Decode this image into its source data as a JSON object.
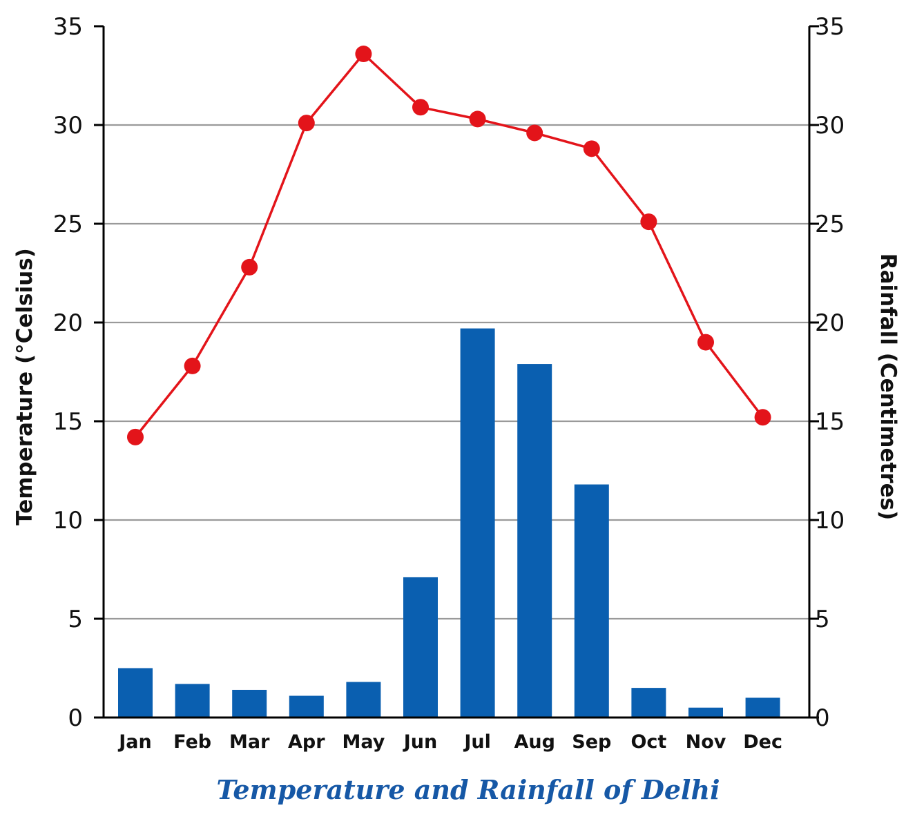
{
  "chart_data": {
    "type": "bar+line",
    "title": "Temperature and Rainfall of Delhi",
    "categories": [
      "Jan",
      "Feb",
      "Mar",
      "Apr",
      "May",
      "Jun",
      "Jul",
      "Aug",
      "Sep",
      "Oct",
      "Nov",
      "Dec"
    ],
    "left_axis": {
      "label": "Temperature (°Celsius)",
      "ylim": [
        0,
        35
      ],
      "ticks": [
        "0",
        "5",
        "10",
        "15",
        "20",
        "25",
        "30",
        "35"
      ]
    },
    "right_axis": {
      "label": "Rainfall (Centimetres)",
      "ylim": [
        0,
        35
      ],
      "ticks": [
        "0",
        "5",
        "10",
        "15",
        "20",
        "25",
        "30",
        "35"
      ]
    },
    "series": [
      {
        "type": "bar",
        "axis": "right",
        "values": [
          2.5,
          1.7,
          1.4,
          1.1,
          1.8,
          7.1,
          19.7,
          17.9,
          11.8,
          1.5,
          0.5,
          1.0
        ]
      },
      {
        "type": "line",
        "axis": "left",
        "values": [
          14.2,
          17.8,
          22.8,
          30.1,
          33.6,
          30.9,
          30.3,
          29.6,
          28.8,
          25.1,
          19.0,
          15.2
        ]
      }
    ],
    "grid": true,
    "colors": {
      "bar": "#0a5fb0",
      "line": "#e3141a",
      "grid": "#9a9a9a",
      "axis": "#000000",
      "title": "#1658a6"
    }
  }
}
